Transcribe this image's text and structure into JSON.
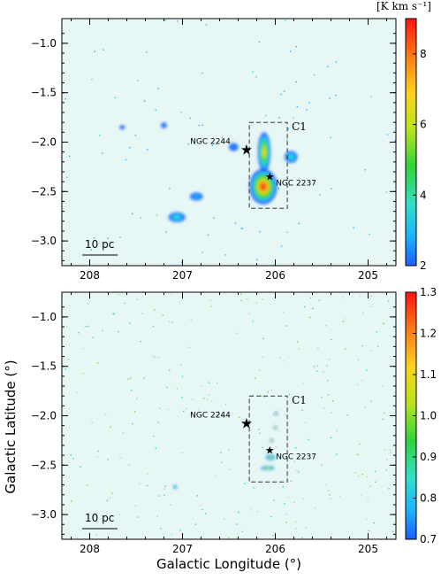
{
  "figure": {
    "xlabel": "Galactic Longitude (°)",
    "ylabel": "Galactic Latitude (°)",
    "x_ticks": [
      208,
      207,
      206,
      205
    ],
    "y_ticks": [
      -1.0,
      -1.5,
      -2.0,
      -2.5,
      -3.0
    ],
    "x_range": [
      208.3,
      204.7
    ],
    "y_range": [
      -3.25,
      -0.75
    ]
  },
  "chart_data": [
    {
      "type": "heatmap",
      "panel": "top",
      "colorbar_unit": "[K km s⁻¹]",
      "colorbar_range": [
        2,
        9
      ],
      "colorbar_ticks": [
        2,
        4,
        6,
        8
      ],
      "background_color": "#e6f7f6",
      "scalebar_label": "10 pc",
      "box": {
        "l_min": 205.87,
        "l_max": 206.28,
        "b_min": -2.67,
        "b_max": -1.8,
        "label": "C1"
      },
      "stars": [
        {
          "name": "NGC 2244",
          "l": 206.31,
          "b": -2.07
        },
        {
          "name": "NGC 2237",
          "l": 206.06,
          "b": -2.35
        }
      ],
      "emission_blobs": [
        {
          "l": 206.13,
          "b": -2.45,
          "rl": 0.15,
          "rb": 0.18,
          "peak": 9.0
        },
        {
          "l": 206.12,
          "b": -2.1,
          "rl": 0.07,
          "rb": 0.2,
          "peak": 7.0
        },
        {
          "l": 205.83,
          "b": -2.15,
          "rl": 0.07,
          "rb": 0.06,
          "peak": 4.0
        },
        {
          "l": 207.06,
          "b": -2.76,
          "rl": 0.09,
          "rb": 0.05,
          "peak": 4.0
        },
        {
          "l": 206.85,
          "b": -2.55,
          "rl": 0.07,
          "rb": 0.04,
          "peak": 3.0
        },
        {
          "l": 206.45,
          "b": -2.05,
          "rl": 0.05,
          "rb": 0.04,
          "peak": 2.5
        },
        {
          "l": 207.2,
          "b": -1.83,
          "rl": 0.03,
          "rb": 0.03,
          "peak": 2.5
        },
        {
          "l": 207.65,
          "b": -1.85,
          "rl": 0.03,
          "rb": 0.02,
          "peak": 2.3
        }
      ]
    },
    {
      "type": "heatmap",
      "panel": "bottom",
      "colorbar_unit": "",
      "colorbar_range": [
        0.7,
        1.3
      ],
      "colorbar_ticks": [
        0.7,
        0.8,
        0.9,
        1.0,
        1.1,
        1.2,
        1.3
      ],
      "background_color": "#e6f7f6",
      "scalebar_label": "10 pc",
      "box": {
        "l_min": 205.87,
        "l_max": 206.28,
        "b_min": -2.67,
        "b_max": -1.8,
        "label": "C1"
      },
      "stars": [
        {
          "name": "NGC 2244",
          "l": 206.31,
          "b": -2.07
        },
        {
          "name": "NGC 2237",
          "l": 206.06,
          "b": -2.35
        }
      ],
      "emission_blobs": [
        {
          "l": 206.08,
          "b": -2.53,
          "rl": 0.07,
          "rb": 0.02,
          "peak": 1.15
        },
        {
          "l": 206.05,
          "b": -2.42,
          "rl": 0.05,
          "rb": 0.03,
          "peak": 1.1
        },
        {
          "l": 206.04,
          "b": -2.25,
          "rl": 0.02,
          "rb": 0.02,
          "peak": 1.3
        },
        {
          "l": 206.0,
          "b": -2.12,
          "rl": 0.02,
          "rb": 0.02,
          "peak": 1.3
        },
        {
          "l": 205.99,
          "b": -1.98,
          "rl": 0.02,
          "rb": 0.02,
          "peak": 1.2
        },
        {
          "l": 207.08,
          "b": -2.72,
          "rl": 0.02,
          "rb": 0.02,
          "peak": 0.9
        }
      ]
    }
  ]
}
